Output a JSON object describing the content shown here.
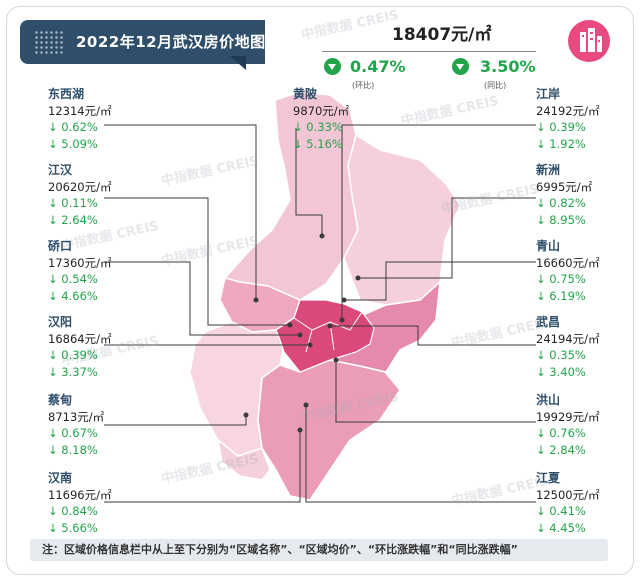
{
  "title": "2022年12月武汉房价地图",
  "avg_price": "18407元/㎡",
  "mom": {
    "value": "0.47%",
    "caption": "(环比)"
  },
  "yoy": {
    "value": "3.50%",
    "caption": "(同比)"
  },
  "note": "注：区域价格信息栏中从上至下分别为“区域名称”、“区域均价”、“环比涨跌幅”和“同比涨跌幅”",
  "watermark": "中指数据 CREIS",
  "colors": {
    "accent": "#2e4e6a",
    "down": "#22a44a",
    "map_light": "#f3c6d6",
    "map_mid": "#e88fb0",
    "map_dark": "#d9497c"
  },
  "districts": [
    {
      "name": "东西湖",
      "price": "12314元/㎡",
      "mom": "↓ 0.62%",
      "yoy": "↓ 5.09%"
    },
    {
      "name": "江汉",
      "price": "20620元/㎡",
      "mom": "↓ 0.11%",
      "yoy": "↓ 2.64%"
    },
    {
      "name": "硚口",
      "price": "17360元/㎡",
      "mom": "↓ 0.54%",
      "yoy": "↓ 4.66%"
    },
    {
      "name": "汉阳",
      "price": "16864元/㎡",
      "mom": "↓ 0.39%",
      "yoy": "↓ 3.37%"
    },
    {
      "name": "蔡甸",
      "price": "8713元/㎡",
      "mom": "↓ 0.67%",
      "yoy": "↓ 8.18%"
    },
    {
      "name": "汉南",
      "price": "11696元/㎡",
      "mom": "↓ 0.84%",
      "yoy": "↓ 5.66%"
    },
    {
      "name": "黄陂",
      "price": "9870元/㎡",
      "mom": "↓ 0.33%",
      "yoy": "↓ 5.16%"
    },
    {
      "name": "江岸",
      "price": "24192元/㎡",
      "mom": "↓ 0.39%",
      "yoy": "↓ 1.92%"
    },
    {
      "name": "新洲",
      "price": "6995元/㎡",
      "mom": "↓ 0.82%",
      "yoy": "↓ 8.95%"
    },
    {
      "name": "青山",
      "price": "16660元/㎡",
      "mom": "↓ 0.75%",
      "yoy": "↓ 6.19%"
    },
    {
      "name": "武昌",
      "price": "24194元/㎡",
      "mom": "↓ 0.35%",
      "yoy": "↓ 3.40%"
    },
    {
      "name": "洪山",
      "price": "19929元/㎡",
      "mom": "↓ 0.76%",
      "yoy": "↓ 2.84%"
    },
    {
      "name": "江夏",
      "price": "12500元/㎡",
      "mom": "↓ 0.41%",
      "yoy": "↓ 4.45%"
    }
  ]
}
